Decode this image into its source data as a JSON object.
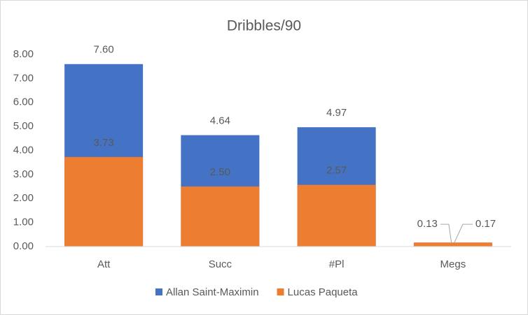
{
  "chart_data": {
    "type": "overlapped-bar",
    "title": "Dribbles/90",
    "categories": [
      "Att",
      "Succ",
      "#Pl",
      "Megs"
    ],
    "series": [
      {
        "name": "Allan Saint-Maximin",
        "color": "#4472c4",
        "values": [
          7.6,
          4.64,
          4.97,
          0.13
        ],
        "value_labels": [
          "7.60",
          "4.64",
          "4.97",
          "0.13"
        ]
      },
      {
        "name": "Lucas Paqueta",
        "color": "#ed7d31",
        "values": [
          3.73,
          2.5,
          2.57,
          0.17
        ],
        "value_labels": [
          "3.73",
          "2.50",
          "2.57",
          "0.17"
        ]
      }
    ],
    "ylim": [
      0,
      8
    ],
    "yticks": [
      {
        "value": 0,
        "label": "0.00"
      },
      {
        "value": 1,
        "label": "1.00"
      },
      {
        "value": 2,
        "label": "2.00"
      },
      {
        "value": 3,
        "label": "3.00"
      },
      {
        "value": 4,
        "label": "4.00"
      },
      {
        "value": 5,
        "label": "5.00"
      },
      {
        "value": 6,
        "label": "6.00"
      },
      {
        "value": 7,
        "label": "7.00"
      },
      {
        "value": 8,
        "label": "8.00"
      }
    ],
    "grid": false,
    "legend": "bottom"
  }
}
